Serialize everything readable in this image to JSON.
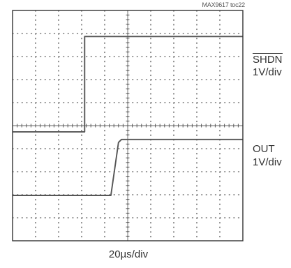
{
  "figure_id": "MAX9617 toc22",
  "colors": {
    "trace": "#555555",
    "grid": "#333333",
    "frame": "#333333"
  },
  "chart_data": {
    "type": "line",
    "title": "",
    "xlabel": "20µs/div",
    "ylabel": "",
    "grid": true,
    "divisions": {
      "x": 10,
      "y": 10
    },
    "xlim": [
      0,
      10
    ],
    "ylim": [
      0,
      10
    ],
    "x_unit": "div",
    "y_unit": "div",
    "series": [
      {
        "name": "SHDN",
        "scale": "1V/div",
        "x": [
          0,
          3.13,
          3.13,
          10
        ],
        "y": [
          4.73,
          4.73,
          8.87,
          8.87
        ]
      },
      {
        "name": "OUT",
        "scale": "1V/div",
        "x": [
          0,
          4.27,
          4.6,
          4.73,
          10
        ],
        "y": [
          1.97,
          1.97,
          4.27,
          4.4,
          4.4
        ]
      }
    ]
  }
}
